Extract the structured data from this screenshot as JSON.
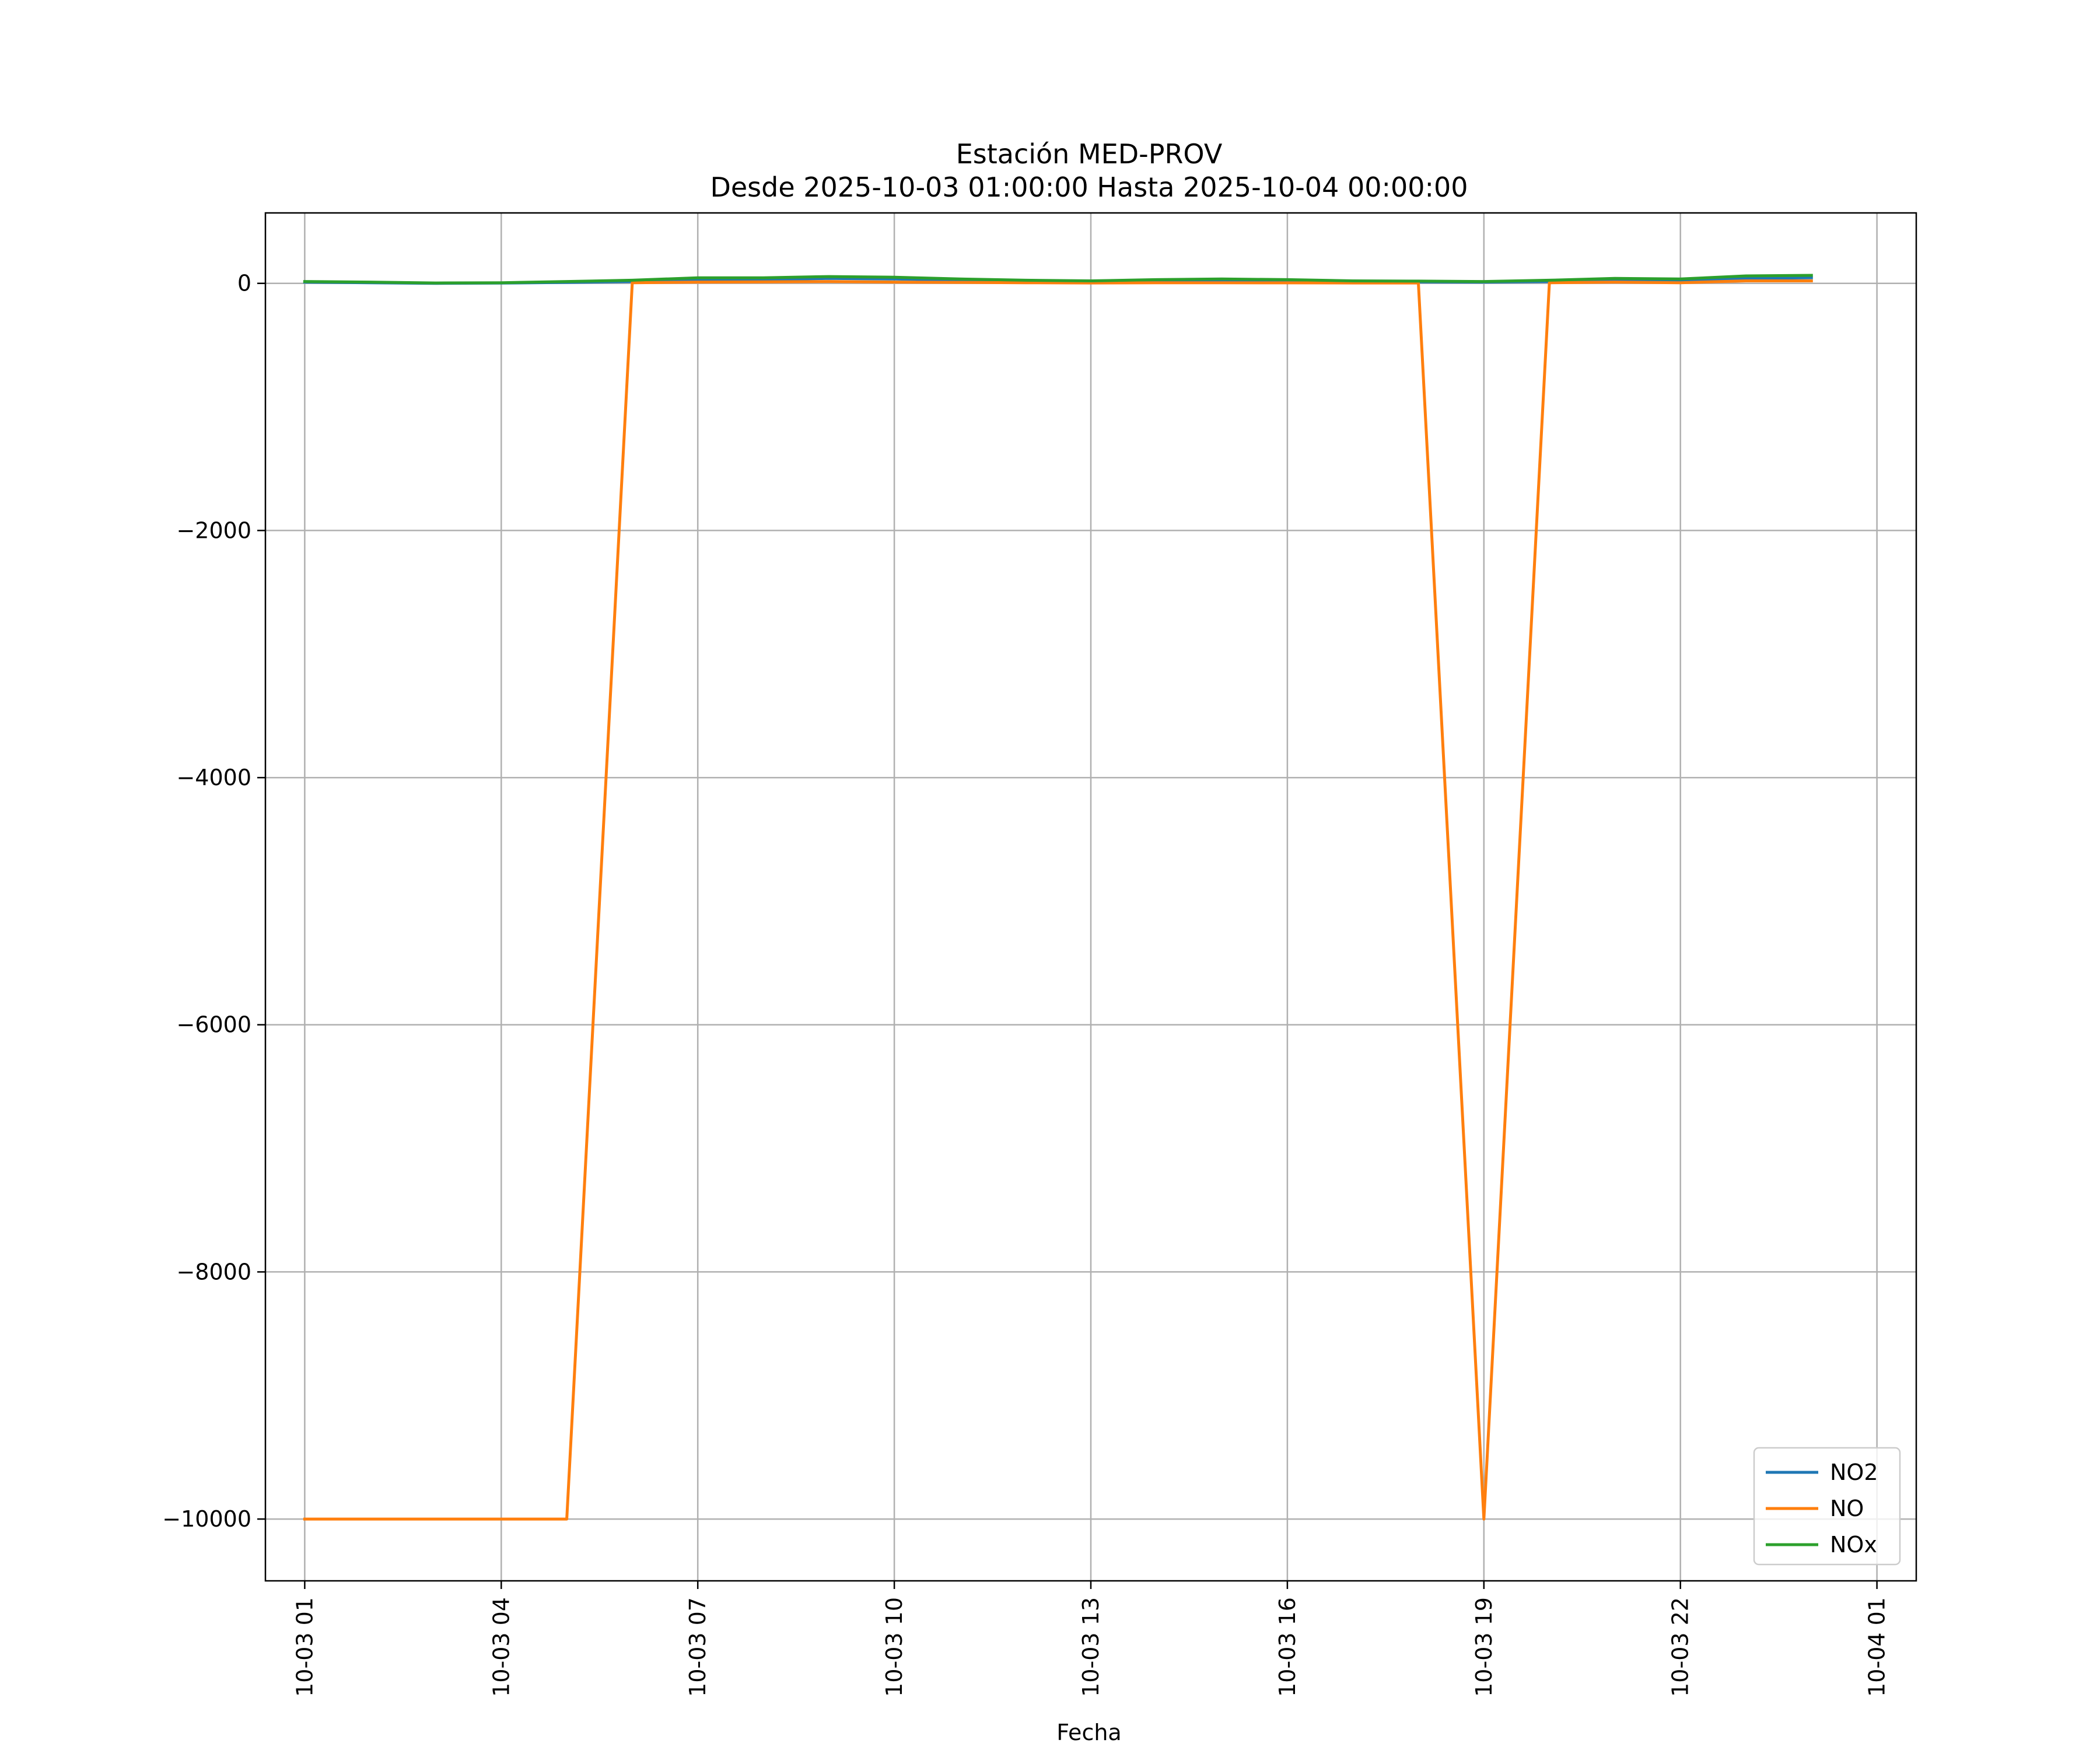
{
  "chart_data": {
    "type": "line",
    "title": "Estación MED-PROV",
    "subtitle": "Desde 2025-10-03 01:00:00 Hasta 2025-10-04 00:00:00",
    "xlabel": "Fecha",
    "ylabel": "",
    "x": [
      "2025-10-03 01:00",
      "2025-10-03 02:00",
      "2025-10-03 03:00",
      "2025-10-03 04:00",
      "2025-10-03 05:00",
      "2025-10-03 06:00",
      "2025-10-03 07:00",
      "2025-10-03 08:00",
      "2025-10-03 09:00",
      "2025-10-03 10:00",
      "2025-10-03 11:00",
      "2025-10-03 12:00",
      "2025-10-03 13:00",
      "2025-10-03 14:00",
      "2025-10-03 15:00",
      "2025-10-03 16:00",
      "2025-10-03 17:00",
      "2025-10-03 18:00",
      "2025-10-03 19:00",
      "2025-10-03 20:00",
      "2025-10-03 21:00",
      "2025-10-03 22:00",
      "2025-10-03 23:00",
      "2025-10-04 00:00"
    ],
    "x_range_hours": [
      -0.6,
      24.6
    ],
    "ylim": [
      -10500,
      570
    ],
    "x_ticks": [
      "10-03 01",
      "10-03 04",
      "10-03 07",
      "10-03 10",
      "10-03 13",
      "10-03 16",
      "10-03 19",
      "10-03 22",
      "10-04 01"
    ],
    "x_tick_hours": [
      0,
      3,
      6,
      9,
      12,
      15,
      18,
      21,
      24
    ],
    "y_ticks": [
      0,
      -2000,
      -4000,
      -6000,
      -8000,
      -10000
    ],
    "y_tick_labels": [
      "0",
      "−2000",
      "−4000",
      "−6000",
      "−8000",
      "−10000"
    ],
    "grid": true,
    "legend_position": "lower right",
    "series": [
      {
        "name": "NO2",
        "color": "#1f77b4",
        "values": [
          10,
          5,
          0,
          2,
          8,
          15,
          30,
          30,
          40,
          35,
          25,
          20,
          15,
          20,
          25,
          20,
          15,
          12,
          10,
          15,
          25,
          25,
          40,
          45
        ]
      },
      {
        "name": "NO",
        "color": "#ff7f0e",
        "values": [
          -10000,
          -10000,
          -10000,
          -10000,
          -10000,
          5,
          10,
          12,
          15,
          10,
          8,
          5,
          3,
          5,
          5,
          4,
          3,
          3,
          -10000,
          5,
          10,
          5,
          20,
          20
        ]
      },
      {
        "name": "NOx",
        "color": "#2ca02c",
        "values": [
          15,
          10,
          3,
          5,
          15,
          25,
          45,
          45,
          55,
          50,
          35,
          25,
          20,
          30,
          35,
          30,
          20,
          18,
          15,
          25,
          40,
          35,
          60,
          65
        ]
      }
    ]
  }
}
